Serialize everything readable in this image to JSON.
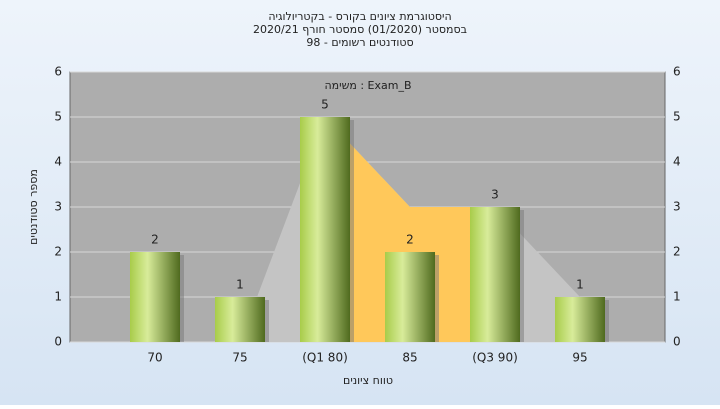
{
  "chart_data": {
    "type": "bar",
    "title": "היסטוגרמת ציונים בקורס - בקטריולוגיה",
    "subtitle": "בסמסטר  (01/2020)  סמסטר חורף  2020/21",
    "subtitle2": "סטודנטים רשומים - 98",
    "annotation": "משימה : Exam_B",
    "y_label": "מספר סטודנטים",
    "x_label": "טווח ציונים",
    "categories": [
      "70",
      "75",
      "(Q1 80)",
      "85",
      "(Q3 90)",
      "95"
    ],
    "values": [
      2,
      1,
      5,
      2,
      3,
      1
    ],
    "color": "#9cc63c",
    "areas": [
      {
        "color": "#c4c4c4",
        "values": [
          null,
          0,
          5,
          3,
          3,
          1
        ]
      },
      {
        "color": "#ffc85a",
        "values": [
          null,
          null,
          5,
          3,
          3,
          null
        ]
      }
    ],
    "ylim": [
      0,
      6
    ],
    "yticks": [
      0,
      1,
      2,
      3,
      4,
      5,
      6
    ],
    "grid": true
  }
}
